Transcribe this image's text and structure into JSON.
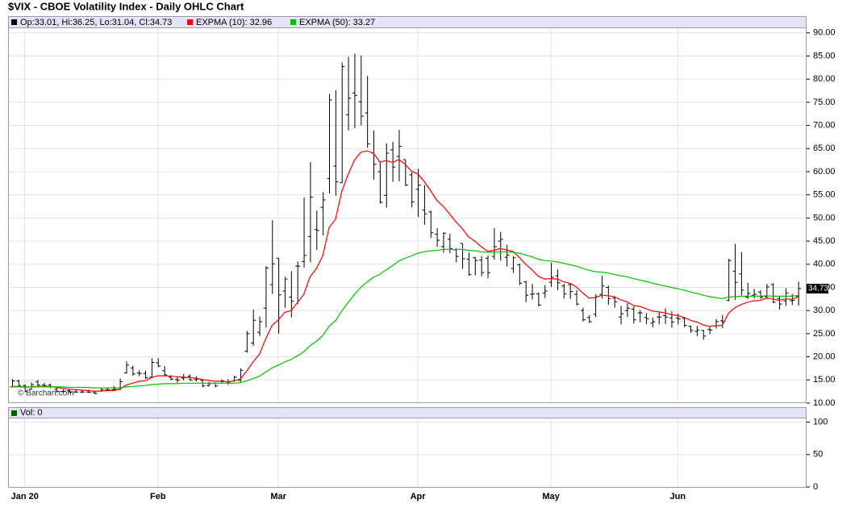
{
  "chart_data": [
    {
      "type": "ohlc",
      "title": "$VIX - CBOE Volatility Index - Daily OHLC Chart",
      "ohlc_legend": "Op:33.01, Hi:36.25, Lo:31.04, Cl:34.73",
      "watermark": "© Barchart.com",
      "last_label": "34.73",
      "bar_color": "#000000",
      "grid": true,
      "ylim": [
        10,
        91
      ],
      "yticks": [
        {
          "value": 10,
          "label": "10.00"
        },
        {
          "value": 15,
          "label": "15.00"
        },
        {
          "value": 20,
          "label": "20.00"
        },
        {
          "value": 25,
          "label": "25.00"
        },
        {
          "value": 30,
          "label": "30.00"
        },
        {
          "value": 35,
          "label": "35.00"
        },
        {
          "value": 40,
          "label": "40.00"
        },
        {
          "value": 45,
          "label": "45.00"
        },
        {
          "value": 50,
          "label": "50.00"
        },
        {
          "value": 55,
          "label": "55.00"
        },
        {
          "value": 60,
          "label": "60.00"
        },
        {
          "value": 65,
          "label": "65.00"
        },
        {
          "value": 70,
          "label": "70.00"
        },
        {
          "value": 75,
          "label": "75.00"
        },
        {
          "value": 80,
          "label": "80.00"
        },
        {
          "value": 85,
          "label": "85.00"
        },
        {
          "value": 90,
          "label": "90.00"
        }
      ],
      "categories": [
        null,
        null,
        "Jan 20",
        null,
        null,
        null,
        null,
        null,
        null,
        null,
        null,
        null,
        null,
        null,
        null,
        null,
        null,
        null,
        null,
        null,
        null,
        null,
        null,
        "Feb",
        null,
        null,
        null,
        null,
        null,
        null,
        null,
        null,
        null,
        null,
        null,
        null,
        null,
        null,
        null,
        null,
        null,
        null,
        "Mar",
        null,
        null,
        null,
        null,
        null,
        null,
        null,
        null,
        null,
        null,
        null,
        null,
        null,
        null,
        null,
        null,
        null,
        null,
        null,
        null,
        null,
        "Apr",
        null,
        null,
        null,
        null,
        null,
        null,
        null,
        null,
        null,
        null,
        null,
        null,
        null,
        null,
        null,
        null,
        null,
        null,
        null,
        null,
        "May",
        null,
        null,
        null,
        null,
        null,
        null,
        null,
        null,
        null,
        null,
        null,
        null,
        null,
        null,
        null,
        null,
        null,
        null,
        null,
        "Jun",
        null,
        null,
        null,
        null,
        null,
        null,
        null,
        null,
        null,
        null,
        null,
        null,
        null,
        null,
        null,
        null,
        null,
        null,
        null
      ],
      "open": [
        13.5,
        14.8,
        13.8,
        13.0,
        14.6,
        13.9,
        13.9,
        13.0,
        12.5,
        12.7,
        12.4,
        12.4,
        12.4,
        12.3,
        12.6,
        12.9,
        12.9,
        13.0,
        16.5,
        17.6,
        16.5,
        16.4,
        15.6,
        18.7,
        17.0,
        15.6,
        15.1,
        15.4,
        15.8,
        15.1,
        14.9,
        13.8,
        14.3,
        14.7,
        14.6,
        14.8,
        14.9,
        21.2,
        23.0,
        25.3,
        30.5,
        35.6,
        41.3,
        34.2,
        32.9,
        39.6,
        40.6,
        46.0,
        47.5,
        52.3,
        58.5,
        61.2,
        57.6,
        72.3,
        77.0,
        75.1,
        72.7,
        64.0,
        60.0,
        54.9,
        64.7,
        63.3,
        62.6,
        59.3,
        56.2,
        51.7,
        51.3,
        46.5,
        43.8,
        45.4,
        43.1,
        44.5,
        41.1,
        41.4,
        40.9,
        41.3,
        41.7,
        45.0,
        41.5,
        39.1,
        39.9,
        36.2,
        33.5,
        33.6,
        33.8,
        36.1,
        37.5,
        35.3,
        35.6,
        33.5,
        30.0,
        28.5,
        29.2,
        33.5,
        35.0,
        32.7,
        28.6,
        30.0,
        30.3,
        29.5,
        28.5,
        27.3,
        28.6,
        28.9,
        28.4,
        28.4,
        28.3,
        26.6,
        25.5,
        25.7,
        25.9,
        26.7,
        27.8,
        32.2,
        38.5,
        37.9,
        32.9,
        33.3,
        34.0,
        33.0,
        35.6,
        32.6,
        32.1,
        32.1,
        33.01
      ],
      "high": [
        15.2,
        15.0,
        14.0,
        14.5,
        15.0,
        14.4,
        14.2,
        13.5,
        13.0,
        13.1,
        12.9,
        12.9,
        12.9,
        12.6,
        13.2,
        13.3,
        13.7,
        15.3,
        19.0,
        18.1,
        17.1,
        17.0,
        19.7,
        19.7,
        18.0,
        16.0,
        15.6,
        16.3,
        16.2,
        15.8,
        15.0,
        14.6,
        14.4,
        15.1,
        15.2,
        15.9,
        17.5,
        25.6,
        30.2,
        28.7,
        39.6,
        49.5,
        41.3,
        37.3,
        38.5,
        40.6,
        54.4,
        62.1,
        51.6,
        55.6,
        76.8,
        77.6,
        83.6,
        84.8,
        85.5,
        85.1,
        80.7,
        68.9,
        62.1,
        66.1,
        66.5,
        69.0,
        62.6,
        59.9,
        60.6,
        57.1,
        51.6,
        47.8,
        46.9,
        46.6,
        43.5,
        44.5,
        42.6,
        41.6,
        41.8,
        41.9,
        47.8,
        47.0,
        44.2,
        41.8,
        40.1,
        36.4,
        35.8,
        33.9,
        35.5,
        40.3,
        38.9,
        35.8,
        35.9,
        34.4,
        30.6,
        29.0,
        33.5,
        37.5,
        35.4,
        32.9,
        31.0,
        31.6,
        30.9,
        30.1,
        29.4,
        28.5,
        29.6,
        30.5,
        29.8,
        29.3,
        28.4,
        26.7,
        26.7,
        25.8,
        26.6,
        28.2,
        29.0,
        41.2,
        44.4,
        42.6,
        36.0,
        34.7,
        34.4,
        35.8,
        35.9,
        33.0,
        34.8,
        33.6,
        36.25
      ],
      "low": [
        13.4,
        13.6,
        12.4,
        12.9,
        13.5,
        13.4,
        13.3,
        12.3,
        12.4,
        12.2,
        12.2,
        12.2,
        12.2,
        11.9,
        12.5,
        12.6,
        12.6,
        12.8,
        16.4,
        15.9,
        15.8,
        15.2,
        15.4,
        17.8,
        15.9,
        14.9,
        14.4,
        14.9,
        14.8,
        14.7,
        13.4,
        13.6,
        13.4,
        14.4,
        14.0,
        14.6,
        14.6,
        20.9,
        22.4,
        24.5,
        26.3,
        33.6,
        25.0,
        30.6,
        28.5,
        31.4,
        39.3,
        40.4,
        43.1,
        46.2,
        55.3,
        54.8,
        57.6,
        68.9,
        69.4,
        70.0,
        65.2,
        58.3,
        53.1,
        52.2,
        57.8,
        57.9,
        56.9,
        52.3,
        50.2,
        48.5,
        45.7,
        43.8,
        42.5,
        42.4,
        40.4,
        39.0,
        37.5,
        37.6,
        37.4,
        37.0,
        41.0,
        40.8,
        39.5,
        38.1,
        35.5,
        31.8,
        32.4,
        30.9,
        32.7,
        35.1,
        34.4,
        32.6,
        32.5,
        31.1,
        27.6,
        27.3,
        28.6,
        32.6,
        31.2,
        30.6,
        27.0,
        28.6,
        27.2,
        27.5,
        27.1,
        26.4,
        27.0,
        27.1,
        26.3,
        27.0,
        26.4,
        25.2,
        24.5,
        23.7,
        24.9,
        26.1,
        26.2,
        32.0,
        32.3,
        33.3,
        32.5,
        32.6,
        32.5,
        32.5,
        31.6,
        30.2,
        31.0,
        31.2,
        31.04
      ],
      "close": [
        14.8,
        13.8,
        12.5,
        14.0,
        13.9,
        13.8,
        13.5,
        12.5,
        12.6,
        12.3,
        12.4,
        12.4,
        12.3,
        12.1,
        12.9,
        12.9,
        13.0,
        14.6,
        18.2,
        16.3,
        16.4,
        15.5,
        18.8,
        18.0,
        16.1,
        15.2,
        15.0,
        15.5,
        15.0,
        15.2,
        13.7,
        14.2,
        13.7,
        14.8,
        14.4,
        15.6,
        17.1,
        25.0,
        27.9,
        27.6,
        39.2,
        40.1,
        33.4,
        36.8,
        32.0,
        39.6,
        41.9,
        54.5,
        47.3,
        53.9,
        75.5,
        57.8,
        82.7,
        75.9,
        76.5,
        72.0,
        66.0,
        61.6,
        53.4,
        64.0,
        61.0,
        65.5,
        57.1,
        53.5,
        57.1,
        50.9,
        46.8,
        45.2,
        46.7,
        43.4,
        41.7,
        41.2,
        37.8,
        40.8,
        38.2,
        38.2,
        43.8,
        45.4,
        42.0,
        41.4,
        35.9,
        33.3,
        33.6,
        31.2,
        34.2,
        37.2,
        36.0,
        33.6,
        34.1,
        31.4,
        28.0,
        27.6,
        33.0,
        35.3,
        32.6,
        31.9,
        29.3,
        30.5,
        28.0,
        29.5,
        28.2,
        27.6,
        28.6,
        28.6,
        27.5,
        28.2,
        26.8,
        25.7,
        25.8,
        24.5,
        25.8,
        27.6,
        27.6,
        40.8,
        36.1,
        34.4,
        33.7,
        33.5,
        32.9,
        35.1,
        31.8,
        31.4,
        33.8,
        32.2,
        34.73
      ],
      "series": [
        {
          "name": "EXPMA (10): 32.96",
          "color": "#ff0000",
          "values": [
            13.6,
            13.6,
            13.4,
            13.5,
            13.6,
            13.6,
            13.6,
            13.4,
            13.2,
            13.0,
            12.9,
            12.8,
            12.7,
            12.6,
            12.6,
            12.7,
            12.7,
            13.0,
            13.9,
            14.3,
            14.7,
            14.8,
            15.5,
            15.9,
            15.9,
            15.8,
            15.7,
            15.6,
            15.5,
            15.4,
            15.1,
            14.9,
            14.7,
            14.7,
            14.6,
            14.8,
            15.2,
            16.9,
            18.9,
            20.5,
            23.9,
            26.8,
            28.0,
            29.6,
            30.0,
            31.7,
            33.5,
            37.3,
            39.1,
            41.8,
            47.9,
            49.7,
            55.7,
            59.4,
            62.5,
            64.2,
            64.5,
            64.0,
            62.1,
            62.4,
            62.0,
            62.6,
            61.6,
            60.1,
            59.5,
            57.9,
            55.9,
            53.8,
            52.5,
            50.9,
            49.2,
            47.7,
            45.9,
            45.0,
            43.8,
            42.8,
            43.0,
            43.4,
            43.1,
            42.8,
            41.5,
            40.0,
            38.8,
            37.4,
            36.8,
            36.9,
            36.8,
            36.2,
            35.9,
            35.1,
            33.8,
            32.7,
            32.8,
            33.3,
            33.2,
            33.0,
            32.3,
            31.9,
            31.1,
            30.9,
            30.4,
            29.9,
            29.7,
            29.5,
            29.1,
            28.9,
            28.5,
            27.9,
            27.5,
            26.9,
            26.6,
            26.7,
            26.8,
            29.4,
            30.6,
            31.3,
            31.8,
            32.1,
            32.2,
            32.7,
            32.5,
            32.2,
            32.5,
            32.4,
            32.96
          ]
        },
        {
          "name": "EXPMA (50): 33.27",
          "color": "#00c000",
          "values": [
            13.5,
            13.5,
            13.5,
            13.5,
            13.5,
            13.5,
            13.5,
            13.5,
            13.5,
            13.4,
            13.4,
            13.4,
            13.4,
            13.3,
            13.3,
            13.3,
            13.3,
            13.3,
            13.5,
            13.6,
            13.7,
            13.8,
            14.0,
            14.1,
            14.2,
            14.2,
            14.2,
            14.3,
            14.3,
            14.3,
            14.3,
            14.3,
            14.3,
            14.3,
            14.3,
            14.3,
            14.4,
            14.8,
            15.3,
            15.8,
            16.7,
            17.6,
            18.2,
            18.9,
            19.4,
            20.2,
            21.1,
            22.4,
            23.4,
            24.6,
            26.6,
            27.8,
            29.9,
            31.7,
            33.5,
            35.0,
            36.2,
            37.2,
            37.8,
            38.8,
            39.7,
            40.7,
            41.3,
            41.8,
            42.4,
            42.7,
            42.9,
            43.0,
            43.2,
            43.2,
            43.2,
            43.2,
            43.0,
            42.9,
            42.7,
            42.6,
            42.6,
            42.7,
            42.7,
            42.6,
            42.4,
            42.0,
            41.6,
            41.1,
            40.8,
            40.7,
            40.5,
            40.2,
            39.9,
            39.6,
            39.1,
            38.7,
            38.4,
            38.3,
            38.1,
            37.8,
            37.5,
            37.3,
            36.9,
            36.6,
            36.3,
            35.9,
            35.6,
            35.3,
            35.0,
            34.7,
            34.4,
            34.0,
            33.7,
            33.3,
            33.0,
            32.8,
            32.6,
            32.9,
            33.0,
            33.1,
            33.1,
            33.1,
            33.1,
            33.2,
            33.1,
            33.1,
            33.1,
            33.1,
            33.27
          ]
        }
      ]
    },
    {
      "type": "volume",
      "legend": "Vol: 0",
      "color": "#006400",
      "grid": true,
      "ylim": [
        0,
        107
      ],
      "yticks": [
        0,
        50,
        100
      ]
    }
  ]
}
